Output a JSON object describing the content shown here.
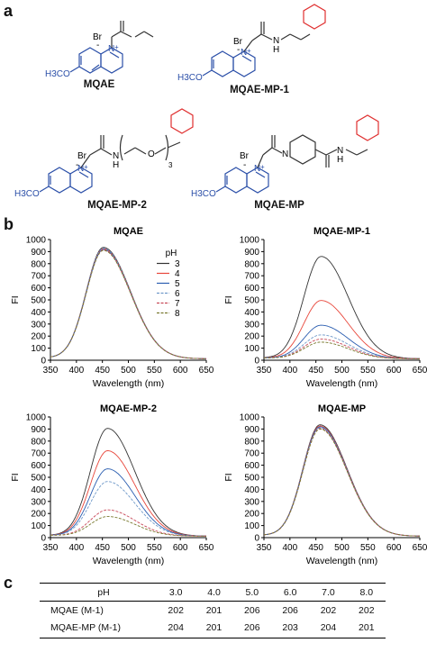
{
  "panels": {
    "a": "a",
    "b": "b",
    "c": "c"
  },
  "molecules": {
    "mqae": {
      "name": "MQAE",
      "br": "Br",
      "minus": "-",
      "n": "N",
      "plus": "+",
      "h3co": "H3CO"
    },
    "mp1": {
      "name": "MQAE-MP-1",
      "br": "Br",
      "minus": "-",
      "n": "N",
      "plus": "+",
      "h3co": "H3CO",
      "nh": "N",
      "h": "H"
    },
    "mp2": {
      "name": "MQAE-MP-2",
      "br": "Br",
      "minus": "-",
      "n": "N",
      "plus": "+",
      "h3co": "H3CO",
      "nh": "N",
      "h": "H",
      "o": "O",
      "rep": "3"
    },
    "mp": {
      "name": "MQAE-MP",
      "br": "Br",
      "minus": "-",
      "n": "N",
      "plus": "+",
      "h3co": "H3CO",
      "nh": "N",
      "h": "H"
    }
  },
  "colors": {
    "blue": "#2b4fa8",
    "red": "#e03030",
    "ph3": "#333333",
    "ph4": "#e8463a",
    "ph5": "#2a5db0",
    "ph6": "#6f99c9",
    "ph7": "#c84a5a",
    "ph8": "#7a7a30"
  },
  "legend_title": "pH",
  "chart_data": [
    {
      "type": "line",
      "title": "MQAE",
      "xlabel": "Wavelength (nm)",
      "ylabel": "FI",
      "xlim": [
        350,
        650
      ],
      "ylim": [
        0,
        1000
      ],
      "xticks": [
        350,
        400,
        450,
        500,
        550,
        600,
        650
      ],
      "yticks": [
        0,
        100,
        200,
        300,
        400,
        500,
        600,
        700,
        800,
        900,
        1000
      ],
      "peak_x": 452,
      "legend": [
        "3",
        "4",
        "5",
        "6",
        "7",
        "8"
      ],
      "series": [
        {
          "name": "3",
          "peak": 935
        },
        {
          "name": "4",
          "peak": 925
        },
        {
          "name": "5",
          "peak": 918
        },
        {
          "name": "6",
          "peak": 928
        },
        {
          "name": "7",
          "peak": 915
        },
        {
          "name": "8",
          "peak": 910
        }
      ]
    },
    {
      "type": "line",
      "title": "MQAE-MP-1",
      "xlabel": "Wavelength (nm)",
      "ylabel": "FI",
      "xlim": [
        350,
        650
      ],
      "ylim": [
        0,
        1000
      ],
      "xticks": [
        350,
        400,
        450,
        500,
        550,
        600,
        650
      ],
      "yticks": [
        0,
        100,
        200,
        300,
        400,
        500,
        600,
        700,
        800,
        900,
        1000
      ],
      "peak_x": 460,
      "series": [
        {
          "name": "3",
          "peak": 860
        },
        {
          "name": "4",
          "peak": 495
        },
        {
          "name": "5",
          "peak": 290
        },
        {
          "name": "6",
          "peak": 210
        },
        {
          "name": "7",
          "peak": 175
        },
        {
          "name": "8",
          "peak": 150
        }
      ]
    },
    {
      "type": "line",
      "title": "MQAE-MP-2",
      "xlabel": "Wavelength (nm)",
      "ylabel": "FI",
      "xlim": [
        350,
        650
      ],
      "ylim": [
        0,
        1000
      ],
      "xticks": [
        350,
        400,
        450,
        500,
        550,
        600,
        650
      ],
      "yticks": [
        0,
        100,
        200,
        300,
        400,
        500,
        600,
        700,
        800,
        900,
        1000
      ],
      "peak_x": 460,
      "series": [
        {
          "name": "3",
          "peak": 905
        },
        {
          "name": "4",
          "peak": 720
        },
        {
          "name": "5",
          "peak": 570
        },
        {
          "name": "6",
          "peak": 465
        },
        {
          "name": "7",
          "peak": 230
        },
        {
          "name": "8",
          "peak": 175
        }
      ]
    },
    {
      "type": "line",
      "title": "MQAE-MP",
      "xlabel": "Wavelength (nm)",
      "ylabel": "FI",
      "xlim": [
        350,
        650
      ],
      "ylim": [
        0,
        1000
      ],
      "xticks": [
        350,
        400,
        450,
        500,
        550,
        600,
        650
      ],
      "yticks": [
        0,
        100,
        200,
        300,
        400,
        500,
        600,
        700,
        800,
        900,
        1000
      ],
      "peak_x": 458,
      "series": [
        {
          "name": "3",
          "peak": 935
        },
        {
          "name": "4",
          "peak": 925
        },
        {
          "name": "5",
          "peak": 918
        },
        {
          "name": "6",
          "peak": 912
        },
        {
          "name": "7",
          "peak": 905
        },
        {
          "name": "8",
          "peak": 900
        }
      ]
    }
  ],
  "table": {
    "header": [
      "pH",
      "3.0",
      "4.0",
      "5.0",
      "6.0",
      "7.0",
      "8.0"
    ],
    "rows": [
      {
        "label": "MQAE (M-1)",
        "values": [
          "202",
          "201",
          "206",
          "206",
          "202",
          "202"
        ]
      },
      {
        "label": "MQAE-MP (M-1)",
        "values": [
          "204",
          "201",
          "206",
          "203",
          "204",
          "201"
        ]
      }
    ]
  }
}
